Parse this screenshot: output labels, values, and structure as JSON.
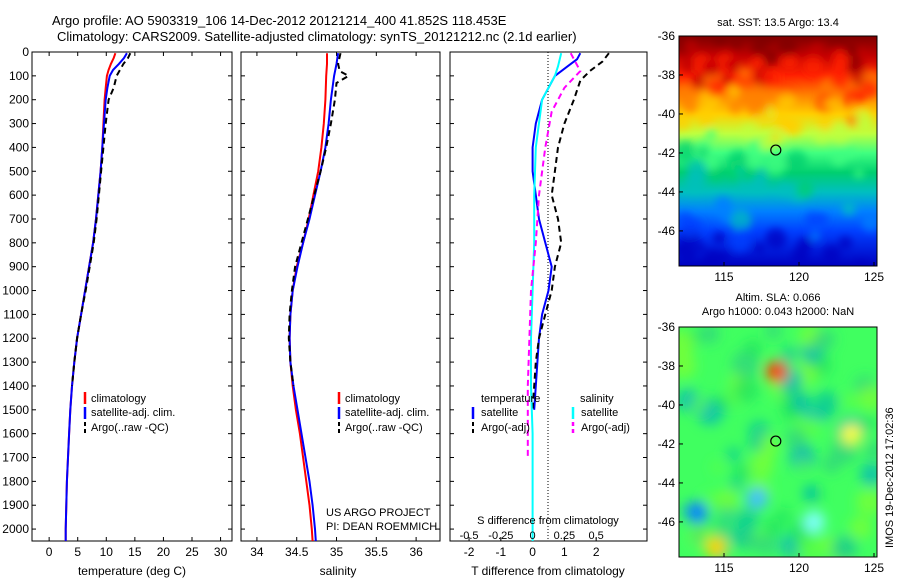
{
  "header": {
    "line1": "Argo profile: AO 5903319_106 14-Dec-2012 20121214_400 41.852S 118.453E",
    "line2": "Climatology: CARS2009. Satellite-adjusted climatology: synTS_20121212.nc (2.1d earlier)"
  },
  "chart_data": [
    {
      "type": "line",
      "id": "temperature",
      "xlabel": "temperature (deg C)",
      "xlim": [
        -3,
        32
      ],
      "xticks": [
        0,
        5,
        10,
        15,
        20,
        25,
        30
      ],
      "ylim": [
        0,
        2050
      ],
      "yticks": [
        0,
        100,
        200,
        300,
        400,
        500,
        600,
        700,
        800,
        900,
        1000,
        1100,
        1200,
        1300,
        1400,
        1500,
        1600,
        1700,
        1800,
        1900,
        2000
      ],
      "legend": {
        "position": "lower-left",
        "entries": [
          "climatology",
          "satellite-adj. clim.",
          "Argo(..raw -QC)"
        ]
      },
      "series": [
        {
          "name": "climatology",
          "color": "#ff0000",
          "dash": "solid",
          "points": [
            [
              11.6,
              5
            ],
            [
              11.3,
              25
            ],
            [
              10.8,
              50
            ],
            [
              10.4,
              75
            ],
            [
              10.1,
              100
            ],
            [
              9.9,
              150
            ],
            [
              9.7,
              200
            ],
            [
              9.5,
              300
            ],
            [
              9.3,
              400
            ],
            [
              9.0,
              500
            ],
            [
              8.6,
              600
            ],
            [
              8.2,
              700
            ],
            [
              7.7,
              800
            ],
            [
              7.0,
              900
            ],
            [
              6.3,
              1000
            ],
            [
              5.6,
              1100
            ],
            [
              4.9,
              1200
            ],
            [
              4.4,
              1300
            ],
            [
              4.0,
              1400
            ],
            [
              3.7,
              1500
            ],
            [
              3.5,
              1600
            ],
            [
              3.3,
              1700
            ],
            [
              3.1,
              1800
            ],
            [
              3.0,
              1900
            ],
            [
              2.9,
              2000
            ],
            [
              2.9,
              2050
            ]
          ]
        },
        {
          "name": "satellite-adj. clim.",
          "color": "#0000ff",
          "dash": "solid",
          "points": [
            [
              13.6,
              5
            ],
            [
              13.1,
              25
            ],
            [
              12.2,
              50
            ],
            [
              11.2,
              75
            ],
            [
              10.6,
              100
            ],
            [
              10.2,
              150
            ],
            [
              9.9,
              200
            ],
            [
              9.6,
              300
            ],
            [
              9.3,
              400
            ],
            [
              9.0,
              500
            ],
            [
              8.6,
              600
            ],
            [
              8.2,
              700
            ],
            [
              7.7,
              800
            ],
            [
              7.0,
              900
            ],
            [
              6.3,
              1000
            ],
            [
              5.6,
              1100
            ],
            [
              4.9,
              1200
            ],
            [
              4.4,
              1300
            ],
            [
              4.0,
              1400
            ],
            [
              3.7,
              1500
            ],
            [
              3.5,
              1600
            ],
            [
              3.3,
              1700
            ],
            [
              3.1,
              1800
            ],
            [
              3.0,
              1900
            ],
            [
              2.9,
              2000
            ],
            [
              2.9,
              2050
            ]
          ]
        },
        {
          "name": "Argo(..raw -QC)",
          "color": "#000000",
          "dash": "dashed",
          "points": [
            [
              14.2,
              5
            ],
            [
              13.8,
              25
            ],
            [
              13.0,
              50
            ],
            [
              12.4,
              75
            ],
            [
              11.8,
              100
            ],
            [
              11.3,
              150
            ],
            [
              10.4,
              200
            ],
            [
              9.9,
              300
            ],
            [
              9.5,
              400
            ],
            [
              9.1,
              500
            ],
            [
              8.7,
              600
            ],
            [
              8.3,
              700
            ],
            [
              7.8,
              800
            ],
            [
              7.1,
              900
            ],
            [
              6.4,
              1000
            ],
            [
              5.6,
              1100
            ],
            [
              4.9,
              1200
            ],
            [
              4.4,
              1300
            ],
            [
              4.0,
              1400
            ]
          ]
        }
      ]
    },
    {
      "type": "line",
      "id": "salinity",
      "xlabel": "salinity",
      "xlim": [
        33.8,
        36.3
      ],
      "xticks": [
        34,
        34.5,
        35,
        35.5,
        36
      ],
      "ylim": [
        0,
        2050
      ],
      "legend": {
        "position": "lower-right",
        "entries": [
          "climatology",
          "satellite-adj. clim.",
          "Argo(..raw -QC)"
        ]
      },
      "annotations": [
        "US ARGO PROJECT",
        "PI: DEAN ROEMMICH"
      ],
      "series": [
        {
          "name": "climatology",
          "color": "#ff0000",
          "dash": "solid",
          "points": [
            [
              34.88,
              5
            ],
            [
              34.88,
              50
            ],
            [
              34.87,
              100
            ],
            [
              34.86,
              200
            ],
            [
              34.84,
              300
            ],
            [
              34.81,
              400
            ],
            [
              34.77,
              500
            ],
            [
              34.71,
              600
            ],
            [
              34.65,
              700
            ],
            [
              34.58,
              800
            ],
            [
              34.5,
              900
            ],
            [
              34.45,
              1000
            ],
            [
              34.42,
              1100
            ],
            [
              34.41,
              1200
            ],
            [
              34.42,
              1300
            ],
            [
              34.45,
              1400
            ],
            [
              34.49,
              1500
            ],
            [
              34.54,
              1600
            ],
            [
              34.58,
              1700
            ],
            [
              34.62,
              1800
            ],
            [
              34.66,
              1900
            ],
            [
              34.69,
              2000
            ],
            [
              34.7,
              2050
            ]
          ]
        },
        {
          "name": "satellite-adj. clim.",
          "color": "#0000ff",
          "dash": "solid",
          "points": [
            [
              35.02,
              5
            ],
            [
              35.0,
              50
            ],
            [
              34.97,
              100
            ],
            [
              34.93,
              200
            ],
            [
              34.9,
              300
            ],
            [
              34.86,
              400
            ],
            [
              34.8,
              500
            ],
            [
              34.73,
              600
            ],
            [
              34.66,
              700
            ],
            [
              34.58,
              800
            ],
            [
              34.51,
              900
            ],
            [
              34.45,
              1000
            ],
            [
              34.42,
              1100
            ],
            [
              34.41,
              1200
            ],
            [
              34.42,
              1300
            ],
            [
              34.46,
              1400
            ],
            [
              34.51,
              1500
            ],
            [
              34.56,
              1600
            ],
            [
              34.61,
              1700
            ],
            [
              34.66,
              1800
            ],
            [
              34.7,
              1900
            ],
            [
              34.73,
              2000
            ],
            [
              34.74,
              2050
            ]
          ]
        },
        {
          "name": "Argo(..raw -QC)",
          "color": "#000000",
          "dash": "dashed",
          "points": [
            [
              35.05,
              5
            ],
            [
              35.02,
              50
            ],
            [
              35.04,
              80
            ],
            [
              35.15,
              100
            ],
            [
              35.0,
              130
            ],
            [
              34.98,
              200
            ],
            [
              34.93,
              300
            ],
            [
              34.87,
              400
            ],
            [
              34.8,
              500
            ],
            [
              34.72,
              600
            ],
            [
              34.64,
              700
            ],
            [
              34.56,
              800
            ],
            [
              34.48,
              900
            ],
            [
              34.44,
              1000
            ],
            [
              34.41,
              1100
            ],
            [
              34.4,
              1200
            ],
            [
              34.42,
              1300
            ],
            [
              34.46,
              1400
            ]
          ]
        }
      ]
    },
    {
      "type": "line",
      "id": "difference",
      "xlabel": "T difference from climatology",
      "xlabel_top": "S difference from climatology",
      "xlim": [
        -2.6,
        3.6
      ],
      "xticks": [
        -2,
        -1,
        0,
        1,
        2
      ],
      "sticks_label": [
        "-0.5",
        "-0.25",
        "0",
        "0.25",
        "0.5"
      ],
      "ylim": [
        0,
        2050
      ],
      "legend": {
        "position": "lower-center",
        "col1_title": "temperature",
        "col2_title": "salinity",
        "entries": [
          "satellite",
          "Argo(-adj)",
          "satellite",
          "Argo(-adj)"
        ]
      },
      "series": [
        {
          "name": "satellite",
          "group": "temperature",
          "color": "#0000ff",
          "dash": "solid",
          "points": [
            [
              1.5,
              5
            ],
            [
              1.4,
              30
            ],
            [
              1.1,
              60
            ],
            [
              0.7,
              100
            ],
            [
              0.5,
              150
            ],
            [
              0.3,
              200
            ],
            [
              0.1,
              300
            ],
            [
              0.0,
              400
            ],
            [
              0.0,
              500
            ],
            [
              0.1,
              600
            ],
            [
              0.2,
              700
            ],
            [
              0.4,
              800
            ],
            [
              0.6,
              900
            ],
            [
              0.5,
              1000
            ],
            [
              0.3,
              1100
            ],
            [
              0.2,
              1200
            ],
            [
              0.15,
              1300
            ],
            [
              0.1,
              1400
            ],
            [
              0.05,
              1500
            ]
          ]
        },
        {
          "name": "Argo(-adj)",
          "group": "temperature",
          "color": "#000000",
          "dash": "dashed",
          "points": [
            [
              2.4,
              5
            ],
            [
              2.2,
              40
            ],
            [
              1.8,
              80
            ],
            [
              1.5,
              120
            ],
            [
              1.3,
              200
            ],
            [
              1.0,
              300
            ],
            [
              0.8,
              400
            ],
            [
              0.7,
              500
            ],
            [
              0.6,
              600
            ],
            [
              0.8,
              700
            ],
            [
              0.9,
              800
            ],
            [
              0.7,
              900
            ],
            [
              0.6,
              1000
            ],
            [
              0.4,
              1100
            ],
            [
              0.2,
              1200
            ],
            [
              0.1,
              1300
            ],
            [
              0.05,
              1400
            ],
            [
              0.0,
              1500
            ]
          ]
        },
        {
          "name": "satellite",
          "group": "salinity",
          "color": "#00ffff",
          "dash": "solid",
          "points": [
            [
              0.9,
              5
            ],
            [
              0.8,
              60
            ],
            [
              0.7,
              100
            ],
            [
              0.3,
              200
            ],
            [
              0.1,
              400
            ],
            [
              0.05,
              600
            ],
            [
              0.05,
              800
            ],
            [
              0.0,
              1000
            ],
            [
              -0.05,
              1200
            ],
            [
              -0.05,
              1400
            ],
            [
              0.0,
              1600
            ],
            [
              0.0,
              1800
            ],
            [
              0.0,
              2050
            ]
          ]
        },
        {
          "name": "Argo(-adj)",
          "group": "salinity",
          "color": "#ff00ff",
          "dash": "dashed",
          "points": [
            [
              1.2,
              5
            ],
            [
              1.5,
              80
            ],
            [
              1.0,
              150
            ],
            [
              0.6,
              250
            ],
            [
              0.4,
              400
            ],
            [
              0.2,
              600
            ],
            [
              0.1,
              800
            ],
            [
              -0.05,
              1000
            ],
            [
              -0.1,
              1200
            ],
            [
              -0.15,
              1400
            ],
            [
              -0.15,
              1600
            ],
            [
              -0.15,
              1700
            ]
          ]
        }
      ]
    },
    {
      "type": "heatmap",
      "id": "sst_map",
      "title": "sat. SST: 13.5 Argo: 13.4",
      "xlim": [
        112,
        125.2
      ],
      "xticks": [
        115,
        120,
        125
      ],
      "ylim": [
        -47.8,
        -36
      ],
      "yticks": [
        -36,
        -38,
        -40,
        -42,
        -44,
        -46
      ],
      "marker": {
        "lon": 118.453,
        "lat": -41.852
      },
      "colors": [
        "#7f0000",
        "#c00000",
        "#ff2000",
        "#ff7f00",
        "#ffcf00",
        "#bfff3f",
        "#40ff80",
        "#00cf6f",
        "#00bfbf",
        "#0080ff",
        "#0040ff",
        "#0000c0"
      ],
      "stops": [
        -36,
        -37,
        -38,
        -39,
        -40,
        -41,
        -42,
        -43,
        -44,
        -45,
        -46,
        -47.8
      ]
    },
    {
      "type": "heatmap",
      "id": "sla_map",
      "title_lines": [
        "Altim. SLA: 0.066",
        "Argo h1000: 0.043 h2000: NaN"
      ],
      "xlim": [
        112,
        125.2
      ],
      "xticks": [
        115,
        120,
        125
      ],
      "ylim": [
        -47.8,
        -36
      ],
      "yticks": [
        -36,
        -38,
        -40,
        -42,
        -44,
        -46
      ],
      "marker": {
        "lon": 118.453,
        "lat": -41.852
      },
      "base_color": "#40ff60",
      "blobs": [
        {
          "lon": 118.5,
          "lat": -38.3,
          "color": "#ff4000"
        },
        {
          "lon": 117.2,
          "lat": -44.8,
          "color": "#40bfff"
        },
        {
          "lon": 113.2,
          "lat": -45.5,
          "color": "#0080ff"
        },
        {
          "lon": 114.5,
          "lat": -47.3,
          "color": "#ffd000"
        },
        {
          "lon": 123.5,
          "lat": -41.5,
          "color": "#ffff40"
        },
        {
          "lon": 121.0,
          "lat": -46.0,
          "color": "#80ffff"
        }
      ]
    }
  ],
  "ylabels": [
    "0",
    "100",
    "200",
    "300",
    "400",
    "500",
    "600",
    "700",
    "800",
    "900",
    "1000",
    "1100",
    "1200",
    "1300",
    "1400",
    "1500",
    "1600",
    "1700",
    "1800",
    "1900",
    "2000"
  ],
  "watermark": "IMOS 19-Dec-2012 17:02:36"
}
